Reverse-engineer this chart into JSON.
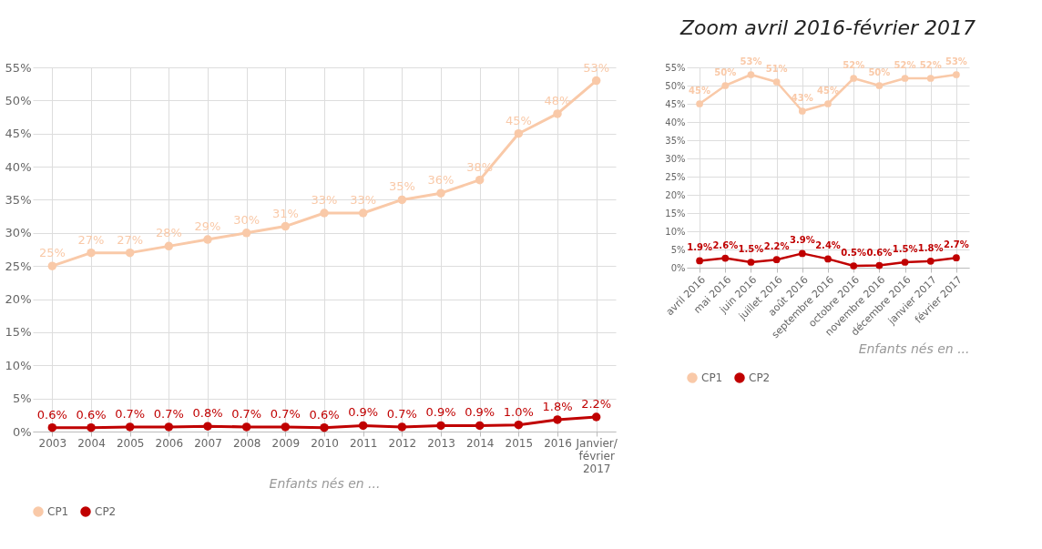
{
  "chart_data": [
    {
      "type": "line",
      "categories": [
        "2003",
        "2004",
        "2005",
        "2006",
        "2007",
        "2008",
        "2009",
        "2010",
        "2011",
        "2012",
        "2013",
        "2014",
        "2015",
        "2016",
        "Janvier/\nfévrier\n2017"
      ],
      "xlabel": "Enfants nés en ...",
      "series": [
        {
          "name": "CP1",
          "color": "#f9c9a8",
          "values": [
            25,
            27,
            27,
            28,
            29,
            30,
            31,
            33,
            33,
            35,
            36,
            38,
            45,
            48,
            53
          ],
          "value_labels": [
            "25%",
            "27%",
            "27%",
            "28%",
            "29%",
            "30%",
            "31%",
            "33%",
            "33%",
            "35%",
            "36%",
            "38%",
            "45%",
            "48%",
            "53%"
          ]
        },
        {
          "name": "CP2",
          "color": "#c00000",
          "values": [
            0.6,
            0.6,
            0.7,
            0.7,
            0.8,
            0.7,
            0.7,
            0.6,
            0.9,
            0.7,
            0.9,
            0.9,
            1.0,
            1.8,
            2.2
          ],
          "value_labels": [
            "0.6%",
            "0.6%",
            "0.7%",
            "0.7%",
            "0.8%",
            "0.7%",
            "0.7%",
            "0.6%",
            "0.9%",
            "0.7%",
            "0.9%",
            "0.9%",
            "1.0%",
            "1.8%",
            "2.2%"
          ]
        }
      ],
      "ylim": [
        0,
        55
      ],
      "yticks": [
        {
          "value": 0,
          "label": "0%"
        },
        {
          "value": 5,
          "label": "5%"
        },
        {
          "value": 10,
          "label": "10%"
        },
        {
          "value": 15,
          "label": "15%"
        },
        {
          "value": 20,
          "label": "20%"
        },
        {
          "value": 25,
          "label": "25%"
        },
        {
          "value": 30,
          "label": "30%"
        },
        {
          "value": 35,
          "label": "35%"
        },
        {
          "value": 40,
          "label": "40%"
        },
        {
          "value": 45,
          "label": "45%"
        },
        {
          "value": 50,
          "label": "50%"
        },
        {
          "value": 55,
          "label": "55%"
        }
      ],
      "grid": true,
      "legend": "bottom",
      "marker": "circle",
      "line_style": "solid"
    },
    {
      "type": "line",
      "title": "Zoom avril 2016-février 2017",
      "categories": [
        "avril 2016",
        "mai 2016",
        "juin 2016",
        "juillet 2016",
        "août 2016",
        "septembre 2016",
        "octobre 2016",
        "novembre 2016",
        "décembre 2016",
        "janvier 2017",
        "février 2017"
      ],
      "xlabel": "Enfants nés en ...",
      "series": [
        {
          "name": "CP1",
          "color": "#f9c9a8",
          "values": [
            45,
            50,
            53,
            51,
            43,
            45,
            52,
            50,
            52,
            52,
            53
          ],
          "value_labels": [
            "45%",
            "50%",
            "53%",
            "51%",
            "43%",
            "45%",
            "52%",
            "50%",
            "52%",
            "52%",
            "53%"
          ]
        },
        {
          "name": "CP2",
          "color": "#c00000",
          "values": [
            1.9,
            2.6,
            1.5,
            2.2,
            3.9,
            2.4,
            0.5,
            0.6,
            1.5,
            1.8,
            2.7
          ],
          "value_labels": [
            "1.9%",
            "2.6%",
            "1.5%",
            "2.2%",
            "3.9%",
            "2.4%",
            "0.5%",
            "0.6%",
            "1.5%",
            "1.8%",
            "2.7%"
          ]
        }
      ],
      "ylim": [
        0,
        55
      ],
      "yticks": [
        {
          "value": 0,
          "label": "0%"
        },
        {
          "value": 5,
          "label": "5%"
        },
        {
          "value": 10,
          "label": "10%"
        },
        {
          "value": 15,
          "label": "15%"
        },
        {
          "value": 20,
          "label": "20%"
        },
        {
          "value": 25,
          "label": "25%"
        },
        {
          "value": 30,
          "label": "30%"
        },
        {
          "value": 35,
          "label": "35%"
        },
        {
          "value": 40,
          "label": "40%"
        },
        {
          "value": 45,
          "label": "45%"
        },
        {
          "value": 50,
          "label": "50%"
        },
        {
          "value": 55,
          "label": "55%"
        }
      ],
      "grid": true,
      "legend": "bottom",
      "marker": "circle",
      "line_style": "solid"
    }
  ]
}
